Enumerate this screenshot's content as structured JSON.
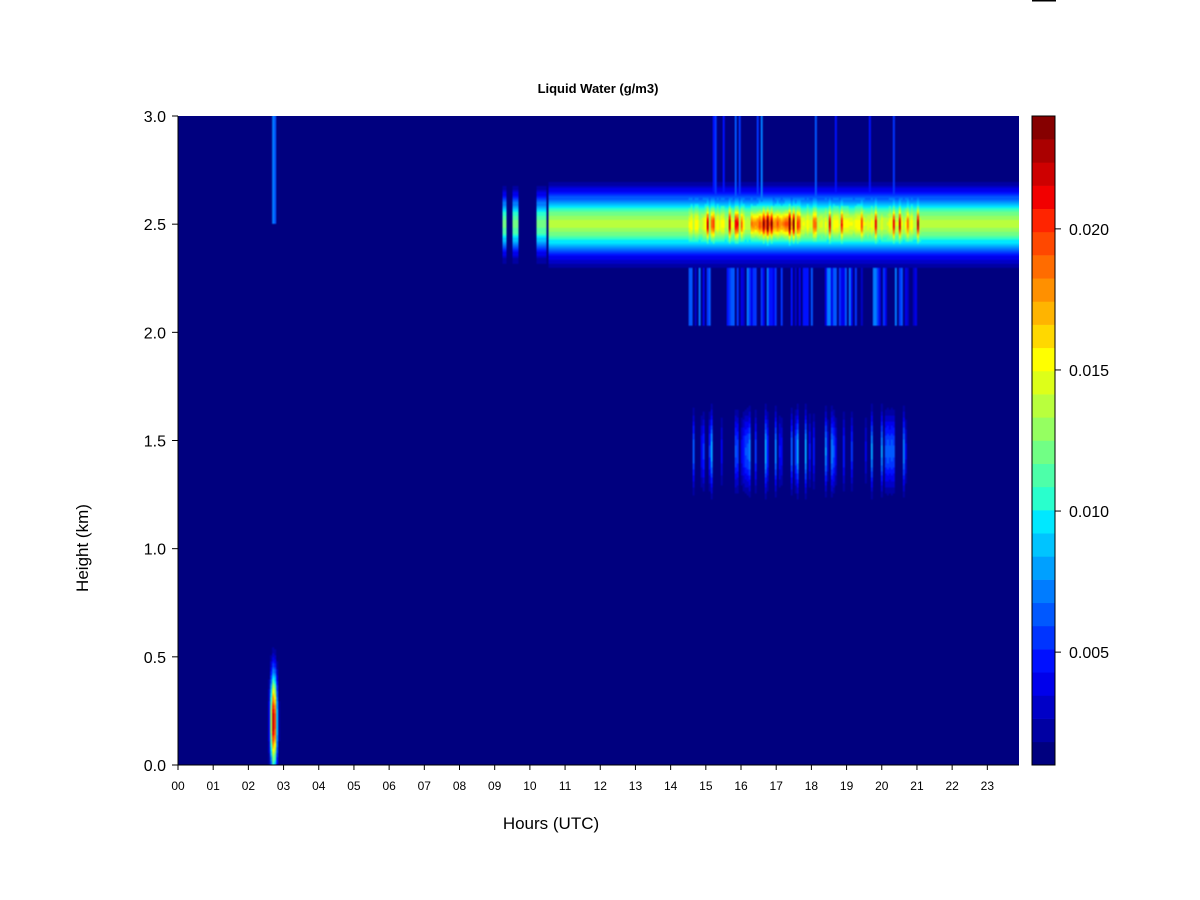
{
  "chart_data": {
    "type": "heatmap",
    "title": "Liquid Water (g/m3)",
    "xlabel": "Hours (UTC)",
    "ylabel": "Height (km)",
    "xlim": [
      0,
      23.9
    ],
    "ylim": [
      0,
      3.0
    ],
    "x_ticks": [
      "00",
      "01",
      "02",
      "03",
      "04",
      "05",
      "06",
      "07",
      "08",
      "09",
      "10",
      "11",
      "12",
      "13",
      "14",
      "15",
      "16",
      "17",
      "18",
      "19",
      "20",
      "21",
      "22",
      "23"
    ],
    "y_ticks": [
      "0.0",
      "0.5",
      "1.0",
      "1.5",
      "2.0",
      "2.5",
      "3.0"
    ],
    "colorbar": {
      "range": [
        0.001,
        0.024
      ],
      "ticks": [
        "0.005",
        "0.010",
        "0.015",
        "0.020"
      ],
      "tick_values": [
        0.005,
        0.01,
        0.015,
        0.02
      ],
      "colors": [
        "#00007f",
        "#0000a3",
        "#0000c7",
        "#0000eb",
        "#0010ff",
        "#0034ff",
        "#0058ff",
        "#007cff",
        "#00a0ff",
        "#00c4ff",
        "#00e8ff",
        "#29ffcd",
        "#4dffa9",
        "#71ff85",
        "#95ff61",
        "#b9ff3d",
        "#ddff19",
        "#ffff00",
        "#ffd800",
        "#ffb400",
        "#ff9000",
        "#ff6c00",
        "#ff4800",
        "#ff2400",
        "#f20000",
        "#ce0000",
        "#aa0000",
        "#860000"
      ]
    },
    "features": [
      {
        "name": "cloud layer",
        "x": [
          9.2,
          23.9
        ],
        "y": [
          2.25,
          2.72
        ],
        "peak_value": 0.022
      },
      {
        "name": "broken layer below main cloud",
        "x": [
          14.5,
          21.0
        ],
        "y": [
          2.03,
          2.3
        ],
        "value": 0.009
      },
      {
        "name": "scattered streaks",
        "x": [
          14.5,
          21.0
        ],
        "y": [
          1.15,
          1.75
        ],
        "value": 0.008
      },
      {
        "name": "near-surface event",
        "x": [
          2.55,
          2.95
        ],
        "y": [
          0.0,
          0.7
        ],
        "peak_value": 0.022
      },
      {
        "name": "upper streak",
        "x": [
          2.6,
          2.85
        ],
        "y": [
          2.5,
          3.0
        ],
        "value": 0.009
      }
    ]
  }
}
